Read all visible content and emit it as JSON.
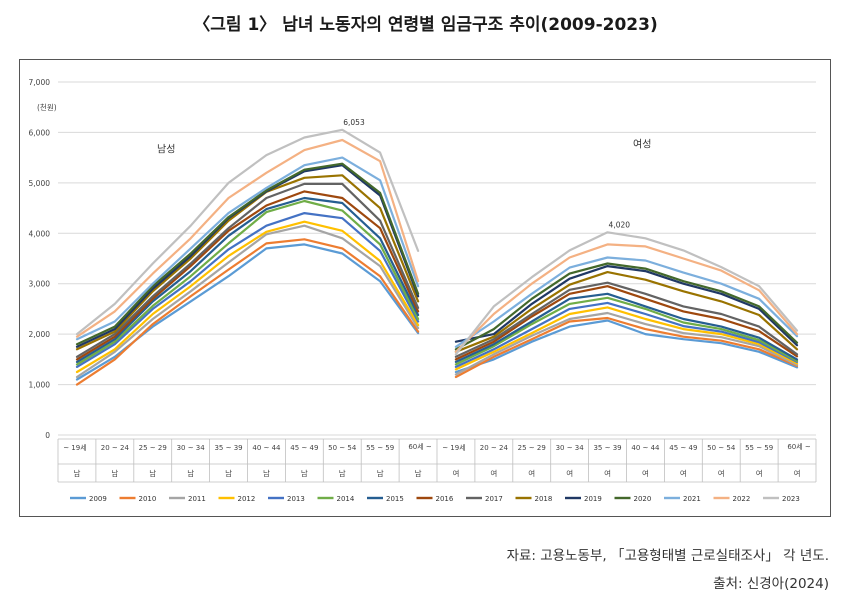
{
  "title": "〈그림 1〉 남녀 노동자의 연령별 임금구조 추이(2009-2023)",
  "source": "자료: 고용노동부, 「고용형태별 근로실태조사」 각 년도.",
  "citation": "출처: 신경아(2024)",
  "chart_data": {
    "type": "line",
    "ylabel": "(천원)",
    "ylim": [
      0,
      7000
    ],
    "yticks": [
      0,
      1000,
      2000,
      3000,
      4000,
      5000,
      6000,
      7000
    ],
    "ytick_labels": [
      "0",
      "1,000",
      "2,000",
      "3,000",
      "4,000",
      "5,000",
      "6,000",
      "7,000"
    ],
    "grid": true,
    "age_groups": [
      "~ 19세",
      "20 ~ 24",
      "25 ~ 29",
      "30 ~ 34",
      "35 ~ 39",
      "40 ~ 44",
      "45 ~ 49",
      "50 ~ 54",
      "55 ~ 59",
      "60세 ~"
    ],
    "group_labels": {
      "male": "남성",
      "female": "여성"
    },
    "gender_row": {
      "male": "남",
      "female": "여"
    },
    "annotations": [
      {
        "text": "6,053",
        "group": "male",
        "series": "2023",
        "age_index": 7
      },
      {
        "text": "4,020",
        "group": "female",
        "series": "2023",
        "age_index": 4
      }
    ],
    "legend_position": "bottom",
    "series": [
      {
        "name": "2009",
        "color": "#5b9bd5",
        "male": [
          1100,
          1550,
          2150,
          2650,
          3150,
          3700,
          3780,
          3600,
          3050,
          2020
        ],
        "female": [
          1250,
          1500,
          1850,
          2150,
          2270,
          2000,
          1900,
          1820,
          1650,
          1340
        ]
      },
      {
        "name": "2010",
        "color": "#ed7d31",
        "male": [
          1000,
          1500,
          2200,
          2750,
          3280,
          3800,
          3880,
          3700,
          3150,
          2050
        ],
        "female": [
          1150,
          1550,
          1900,
          2250,
          2320,
          2100,
          1950,
          1870,
          1700,
          1370
        ]
      },
      {
        "name": "2011",
        "color": "#a5a5a5",
        "male": [
          1150,
          1650,
          2300,
          2850,
          3420,
          3980,
          4150,
          3900,
          3350,
          2120
        ],
        "female": [
          1200,
          1600,
          1970,
          2300,
          2420,
          2200,
          2020,
          1940,
          1760,
          1390
        ]
      },
      {
        "name": "2012",
        "color": "#ffc000",
        "male": [
          1250,
          1700,
          2400,
          2950,
          3550,
          4030,
          4230,
          4050,
          3450,
          2180
        ],
        "female": [
          1300,
          1650,
          2020,
          2400,
          2530,
          2300,
          2100,
          2000,
          1800,
          1420
        ]
      },
      {
        "name": "2013",
        "color": "#4472c4",
        "male": [
          1350,
          1800,
          2500,
          3050,
          3680,
          4150,
          4400,
          4300,
          3650,
          2250
        ],
        "female": [
          1350,
          1700,
          2100,
          2500,
          2620,
          2400,
          2160,
          2050,
          1840,
          1450
        ]
      },
      {
        "name": "2014",
        "color": "#70ad47",
        "male": [
          1400,
          1850,
          2560,
          3150,
          3800,
          4420,
          4640,
          4450,
          3780,
          2300
        ],
        "female": [
          1400,
          1760,
          2200,
          2600,
          2720,
          2500,
          2230,
          2100,
          1880,
          1470
        ]
      },
      {
        "name": "2015",
        "color": "#255e91",
        "male": [
          1450,
          1900,
          2650,
          3250,
          3950,
          4480,
          4700,
          4600,
          3900,
          2380
        ],
        "female": [
          1450,
          1800,
          2250,
          2700,
          2800,
          2550,
          2300,
          2150,
          1930,
          1500
        ]
      },
      {
        "name": "2016",
        "color": "#9e480e",
        "male": [
          1500,
          1950,
          2700,
          3350,
          4050,
          4550,
          4830,
          4700,
          4100,
          2450
        ],
        "female": [
          1500,
          1850,
          2350,
          2800,
          2950,
          2700,
          2450,
          2300,
          2060,
          1560
        ]
      },
      {
        "name": "2017",
        "color": "#636363",
        "male": [
          1550,
          2000,
          2750,
          3400,
          4100,
          4700,
          4980,
          4980,
          4250,
          2520
        ],
        "female": [
          1550,
          1900,
          2400,
          2880,
          3020,
          2800,
          2550,
          2400,
          2150,
          1600
        ]
      },
      {
        "name": "2018",
        "color": "#997300",
        "male": [
          1700,
          2050,
          2850,
          3500,
          4250,
          4820,
          5100,
          5150,
          4500,
          2650
        ],
        "female": [
          1650,
          1950,
          2500,
          2980,
          3230,
          3080,
          2850,
          2650,
          2380,
          1700
        ]
      },
      {
        "name": "2019",
        "color": "#203864",
        "male": [
          1750,
          2100,
          2900,
          3550,
          4300,
          4830,
          5230,
          5350,
          4750,
          2750
        ],
        "female": [
          1850,
          2000,
          2600,
          3100,
          3350,
          3250,
          3000,
          2800,
          2500,
          1780
        ]
      },
      {
        "name": "2020",
        "color": "#43682b",
        "male": [
          1800,
          2150,
          2950,
          3600,
          4320,
          4850,
          5260,
          5380,
          4800,
          2800
        ],
        "female": [
          1700,
          2100,
          2700,
          3200,
          3400,
          3300,
          3050,
          2850,
          2550,
          1830
        ]
      },
      {
        "name": "2021",
        "color": "#7cafdd",
        "male": [
          1900,
          2250,
          3000,
          3700,
          4400,
          4900,
          5350,
          5500,
          5050,
          2950
        ],
        "female": [
          1750,
          2250,
          2800,
          3320,
          3520,
          3460,
          3220,
          3000,
          2700,
          1960
        ]
      },
      {
        "name": "2022",
        "color": "#f4b183",
        "male": [
          1950,
          2450,
          3200,
          3900,
          4700,
          5200,
          5650,
          5850,
          5430,
          3050
        ],
        "female": [
          1650,
          2400,
          3000,
          3520,
          3780,
          3740,
          3500,
          3260,
          2870,
          2000
        ]
      },
      {
        "name": "2023",
        "color": "#c0c0c0",
        "male": [
          2000,
          2600,
          3400,
          4150,
          5000,
          5550,
          5900,
          6053,
          5600,
          3650
        ],
        "female": [
          1600,
          2550,
          3130,
          3660,
          4020,
          3900,
          3660,
          3330,
          2950,
          2070
        ]
      }
    ]
  }
}
